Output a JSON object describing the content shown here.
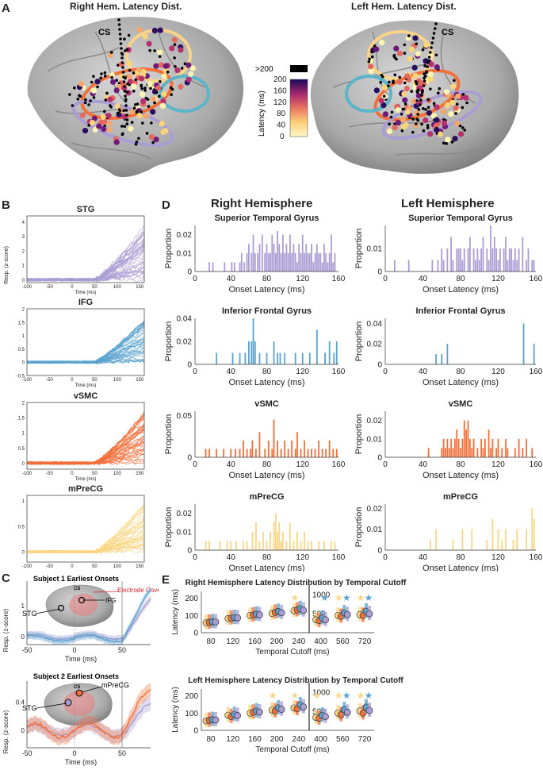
{
  "panels": {
    "a": "A",
    "b": "B",
    "c": "C",
    "d": "D",
    "e": "E"
  },
  "panel_a": {
    "right_title": "Right Hem. Latency Dist.",
    "left_title": "Left Hem. Latency Dist.",
    "cs_label": "CS",
    "colorbar": {
      "label": "Latency (ms)",
      "ticks": [
        "0",
        "20",
        "40",
        "60",
        "80",
        "100",
        "120",
        "140",
        "160",
        "180",
        "200"
      ],
      "over_label": ">200"
    }
  },
  "panel_b": {
    "xlabel": "Time (ms)",
    "ylabel": "Resp. (z-score)",
    "xticks": [
      "-100",
      "-50",
      "0",
      "50",
      "100",
      "150"
    ],
    "plots": [
      {
        "title": "STG",
        "color": "#a99dd4",
        "yticks": [
          "0",
          "1",
          "2",
          "3",
          "4"
        ],
        "ymax": 4.4
      },
      {
        "title": "IFG",
        "color": "#5ba3cf",
        "yticks": [
          "-0.5",
          "0",
          "0.5",
          "1",
          "1.5",
          "2"
        ],
        "ymax": 2
      },
      {
        "title": "vSMC",
        "color": "#f26f3a",
        "yticks": [
          "0",
          "0.5",
          "1",
          "1.5",
          "2"
        ],
        "ymax": 2
      },
      {
        "title": "mPreCG",
        "color": "#fad684",
        "yticks": [
          "0",
          "0.5",
          "1"
        ],
        "ymax": 1.1
      }
    ]
  },
  "panel_c": {
    "xlabel": "Time (ms)",
    "ylabel": "Resp. (z-score)",
    "xticks": [
      "-50",
      "0",
      "50"
    ],
    "s1": {
      "title": "Subject 1 Earliest Onsets",
      "coverage": "Electrode Coverage",
      "cs": "CS",
      "stg": "STG",
      "ifg": "IFG",
      "yticks": [
        "0",
        "1"
      ]
    },
    "s2": {
      "title": "Subject 2 Earliest Onsets",
      "cs": "CS",
      "stg": "STG",
      "mprecg": "mPreCG",
      "yticks": [
        "0",
        "0.4"
      ]
    }
  },
  "panel_d": {
    "right_header": "Right Hemisphere",
    "left_header": "Left Hemisphere",
    "xlabel": "Onset Latency (ms)",
    "ylabel": "Proportion",
    "xticks": [
      "0",
      "40",
      "80",
      "120",
      "160"
    ]
  },
  "panel_e": {
    "right_title": "Right Hemisphere Latency Distribution by Temporal Cutoff",
    "left_title": "Left Hemisphere Latency Distribution by Temporal Cutoff",
    "xlabel": "Temporal Cutoff (ms)",
    "ylabel": "Latency (ms)",
    "xticks": [
      "80",
      "120",
      "160",
      "200",
      "240",
      "400",
      "560",
      "720"
    ],
    "yticks": [
      "0",
      "100",
      "200"
    ],
    "right_yticks": [
      "500",
      "1000"
    ]
  },
  "chart_data": [
    {
      "type": "bar",
      "title": "Superior Temporal Gyrus",
      "hemisphere": "Right",
      "xlabel": "Onset Latency (ms)",
      "ylabel": "Proportion",
      "xlim": [
        0,
        160
      ],
      "ylim": [
        0,
        0.025
      ],
      "yticks": [
        "0",
        "0.01",
        "0.02"
      ],
      "color": "#a99dd4",
      "x": [
        16,
        20,
        33,
        41,
        44,
        50,
        52,
        55,
        58,
        60,
        63,
        65,
        67,
        70,
        72,
        75,
        78,
        80,
        82,
        84,
        86,
        88,
        90,
        92,
        94,
        96,
        98,
        100,
        102,
        104,
        106,
        108,
        110,
        112,
        114,
        116,
        118,
        120,
        122,
        124,
        126,
        128,
        130,
        132,
        134,
        136,
        138,
        140,
        142,
        144,
        146,
        148,
        150,
        152,
        154,
        156
      ],
      "values": [
        0.005,
        0.005,
        0.005,
        0.005,
        0.005,
        0.005,
        0.01,
        0.005,
        0.01,
        0.015,
        0.01,
        0.02,
        0.01,
        0.01,
        0.015,
        0.02,
        0.01,
        0.015,
        0.01,
        0.01,
        0.02,
        0.015,
        0.01,
        0.022,
        0.015,
        0.01,
        0.02,
        0.01,
        0.015,
        0.01,
        0.02,
        0.01,
        0.015,
        0.01,
        0.005,
        0.015,
        0.01,
        0.02,
        0.01,
        0.015,
        0.01,
        0.01,
        0.015,
        0.005,
        0.01,
        0.015,
        0.01,
        0.01,
        0.005,
        0.015,
        0.01,
        0.005,
        0.01,
        0.02,
        0.005,
        0.01
      ]
    },
    {
      "type": "bar",
      "title": "Superior Temporal Gyrus",
      "hemisphere": "Left",
      "xlabel": "Onset Latency (ms)",
      "ylabel": "Proportion",
      "xlim": [
        0,
        160
      ],
      "ylim": [
        0,
        0.02
      ],
      "yticks": [
        "0",
        "0.01"
      ],
      "color": "#a99dd4",
      "x": [
        10,
        25,
        50,
        56,
        60,
        62,
        66,
        70,
        72,
        76,
        78,
        80,
        82,
        84,
        88,
        90,
        94,
        96,
        98,
        100,
        102,
        104,
        108,
        110,
        112,
        114,
        116,
        118,
        120,
        122,
        126,
        128,
        130,
        132,
        134,
        136,
        138,
        140,
        142,
        146,
        150,
        152,
        156,
        158
      ],
      "values": [
        0.005,
        0.005,
        0.005,
        0.005,
        0.01,
        0.005,
        0.01,
        0.015,
        0.005,
        0.01,
        0.01,
        0.01,
        0.005,
        0.01,
        0.01,
        0.015,
        0.01,
        0.005,
        0.01,
        0.005,
        0.01,
        0.015,
        0.01,
        0.005,
        0.02,
        0.01,
        0.015,
        0.01,
        0.005,
        0.01,
        0.01,
        0.015,
        0.005,
        0.01,
        0.01,
        0.005,
        0.01,
        0.005,
        0.01,
        0.015,
        0.005,
        0.01,
        0.005,
        0.005
      ]
    },
    {
      "type": "bar",
      "title": "Inferior Frontal Gyrus",
      "hemisphere": "Right",
      "xlabel": "Onset Latency (ms)",
      "ylabel": "Proportion",
      "xlim": [
        0,
        160
      ],
      "ylim": [
        0,
        0.04
      ],
      "yticks": [
        "0",
        "0.02",
        "0.04"
      ],
      "color": "#5ba3cf",
      "x": [
        24,
        42,
        50,
        56,
        60,
        63,
        65,
        67,
        72,
        80,
        88,
        92,
        95,
        100,
        112,
        120,
        128,
        136,
        145,
        150,
        155,
        158
      ],
      "values": [
        0.01,
        0.01,
        0.01,
        0.01,
        0.02,
        0.02,
        0.04,
        0.02,
        0.01,
        0.01,
        0.02,
        0.01,
        0.01,
        0.01,
        0.01,
        0.01,
        0.01,
        0.03,
        0.01,
        0.02,
        0.01,
        0.02
      ]
    },
    {
      "type": "bar",
      "title": "Inferior Frontal Gyrus",
      "hemisphere": "Left",
      "xlabel": "Onset Latency (ms)",
      "ylabel": "Proportion",
      "xlim": [
        0,
        160
      ],
      "ylim": [
        0,
        0.045
      ],
      "yticks": [
        "0",
        "0.02",
        "0.04"
      ],
      "color": "#5ba3cf",
      "x": [
        54,
        60,
        66,
        147,
        158
      ],
      "values": [
        0.01,
        0.01,
        0.02,
        0.04,
        0.02
      ]
    },
    {
      "type": "bar",
      "title": "vSMC",
      "hemisphere": "Right",
      "xlabel": "Onset Latency (ms)",
      "ylabel": "Proportion",
      "xlim": [
        0,
        160
      ],
      "ylim": [
        0,
        0.055
      ],
      "yticks": [
        "0",
        "0.05"
      ],
      "color": "#f26f3a",
      "x": [
        12,
        16,
        24,
        32,
        40,
        45,
        50,
        54,
        58,
        62,
        64,
        68,
        72,
        78,
        82,
        86,
        88,
        92,
        96,
        100,
        104,
        108,
        112,
        114,
        118,
        122,
        126,
        130,
        134,
        138,
        142,
        146,
        150,
        154,
        158
      ],
      "values": [
        0.01,
        0.01,
        0.01,
        0.01,
        0.01,
        0.01,
        0.01,
        0.02,
        0.01,
        0.01,
        0.02,
        0.01,
        0.03,
        0.01,
        0.02,
        0.01,
        0.045,
        0.02,
        0.01,
        0.02,
        0.01,
        0.02,
        0.01,
        0.03,
        0.01,
        0.02,
        0.01,
        0.01,
        0.01,
        0.02,
        0.01,
        0.01,
        0.02,
        0.01,
        0.01
      ]
    },
    {
      "type": "bar",
      "title": "vSMC",
      "hemisphere": "Left",
      "xlabel": "Onset Latency (ms)",
      "ylabel": "Proportion",
      "xlim": [
        0,
        160
      ],
      "ylim": [
        0,
        0.025
      ],
      "yticks": [
        "0",
        "0.01",
        "0.02"
      ],
      "color": "#f26f3a",
      "x": [
        46,
        60,
        62,
        64,
        66,
        68,
        70,
        72,
        74,
        76,
        78,
        80,
        82,
        84,
        86,
        88,
        90,
        92,
        94,
        98,
        102,
        104,
        106,
        110,
        112,
        114,
        118,
        120,
        124,
        128,
        130,
        138,
        142,
        146,
        150,
        156
      ],
      "values": [
        0.005,
        0.005,
        0.01,
        0.005,
        0.01,
        0.005,
        0.01,
        0.005,
        0.01,
        0.015,
        0.01,
        0.005,
        0.01,
        0.02,
        0.015,
        0.02,
        0.01,
        0.005,
        0.01,
        0.005,
        0.01,
        0.005,
        0.01,
        0.015,
        0.005,
        0.01,
        0.005,
        0.01,
        0.005,
        0.01,
        0.005,
        0.005,
        0.01,
        0.005,
        0.01,
        0.005
      ]
    },
    {
      "type": "bar",
      "title": "mPreCG",
      "hemisphere": "Right",
      "xlabel": "Onset Latency (ms)",
      "ylabel": "Proportion",
      "xlim": [
        0,
        160
      ],
      "ylim": [
        0,
        0.025
      ],
      "yticks": [
        "0",
        "0.01",
        "0.02"
      ],
      "color": "#fad684",
      "x": [
        12,
        16,
        28,
        36,
        40,
        46,
        54,
        58,
        64,
        68,
        72,
        76,
        80,
        84,
        88,
        90,
        92,
        94,
        96,
        98,
        102,
        106,
        110,
        114,
        118,
        122,
        126,
        130,
        138,
        144,
        152,
        156
      ],
      "values": [
        0.005,
        0.005,
        0.005,
        0.005,
        0.005,
        0.005,
        0.005,
        0.005,
        0.01,
        0.015,
        0.005,
        0.01,
        0.005,
        0.01,
        0.015,
        0.02,
        0.01,
        0.015,
        0.005,
        0.01,
        0.005,
        0.015,
        0.005,
        0.01,
        0.005,
        0.01,
        0.005,
        0.005,
        0.005,
        0.005,
        0.005,
        0.005
      ]
    },
    {
      "type": "bar",
      "title": "mPreCG",
      "hemisphere": "Left",
      "xlabel": "Onset Latency (ms)",
      "ylabel": "Proportion",
      "xlim": [
        0,
        160
      ],
      "ylim": [
        0,
        0.022
      ],
      "yticks": [
        "0",
        "0.01",
        "0.02"
      ],
      "color": "#fad684",
      "x": [
        48,
        54,
        72,
        82,
        92,
        108,
        114,
        120,
        124,
        128,
        136,
        140,
        150,
        156,
        158
      ],
      "values": [
        0.005,
        0.01,
        0.005,
        0.01,
        0.01,
        0.005,
        0.015,
        0.01,
        0.005,
        0.01,
        0.005,
        0.01,
        0.01,
        0.02,
        0.015
      ]
    },
    {
      "type": "scatter",
      "title": "Right Hemisphere Latency Distribution by Temporal Cutoff",
      "categories": [
        "80",
        "120",
        "160",
        "200",
        "240",
        "400",
        "560",
        "720"
      ],
      "series": [
        {
          "name": "mPreCG",
          "color": "#fad684",
          "values": [
            58,
            82,
            100,
            112,
            128,
            30,
            40,
            42
          ]
        },
        {
          "name": "vSMC",
          "color": "#f26f3a",
          "values": [
            60,
            85,
            102,
            118,
            132,
            28,
            38,
            40
          ]
        },
        {
          "name": "IFG",
          "color": "#5ba3cf",
          "values": [
            64,
            88,
            108,
            124,
            140,
            34,
            46,
            50
          ]
        },
        {
          "name": "STG",
          "color": "#a99dd4",
          "values": [
            62,
            86,
            104,
            116,
            130,
            30,
            42,
            44
          ]
        }
      ]
    },
    {
      "type": "scatter",
      "title": "Left Hemisphere Latency Distribution by Temporal Cutoff",
      "categories": [
        "80",
        "120",
        "160",
        "200",
        "240",
        "400",
        "560",
        "720"
      ],
      "series": [
        {
          "name": "mPreCG",
          "color": "#fad684",
          "values": [
            55,
            88,
            100,
            118,
            130,
            30,
            40,
            45
          ]
        },
        {
          "name": "vSMC",
          "color": "#f26f3a",
          "values": [
            58,
            80,
            105,
            112,
            125,
            28,
            36,
            40
          ]
        },
        {
          "name": "IFG",
          "color": "#5ba3cf",
          "values": [
            62,
            92,
            112,
            130,
            148,
            35,
            48,
            54
          ]
        },
        {
          "name": "STG",
          "color": "#a99dd4",
          "values": [
            60,
            86,
            106,
            122,
            136,
            32,
            42,
            46
          ]
        }
      ]
    }
  ]
}
